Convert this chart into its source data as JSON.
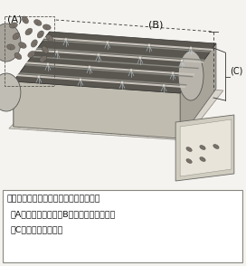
{
  "fig_width": 2.72,
  "fig_height": 2.94,
  "dpi": 100,
  "bg_color": "#f5f3ef",
  "diagram_bg": "#e8e6e0",
  "caption_line1": "図１　低カフェイン処理機のイメージ図",
  "caption_line2": "（A）生葉投入口、（B）熱水シャワー部、",
  "caption_line3": "（C）清水シャワー部",
  "label_A": "(A)",
  "label_B": "(B)",
  "label_C": "(C)",
  "text_color": "#111111",
  "caption_fontsize": 6.8,
  "label_fontsize": 8.0,
  "belt_color": "#5a5650",
  "roller_color": "#c0bcb4",
  "frame_color": "#888880",
  "hatch_color": "#aaa89a",
  "leaf_color": "#787068",
  "nozzle_color": "#d0ccc0",
  "box_color": "#c8c4b8"
}
